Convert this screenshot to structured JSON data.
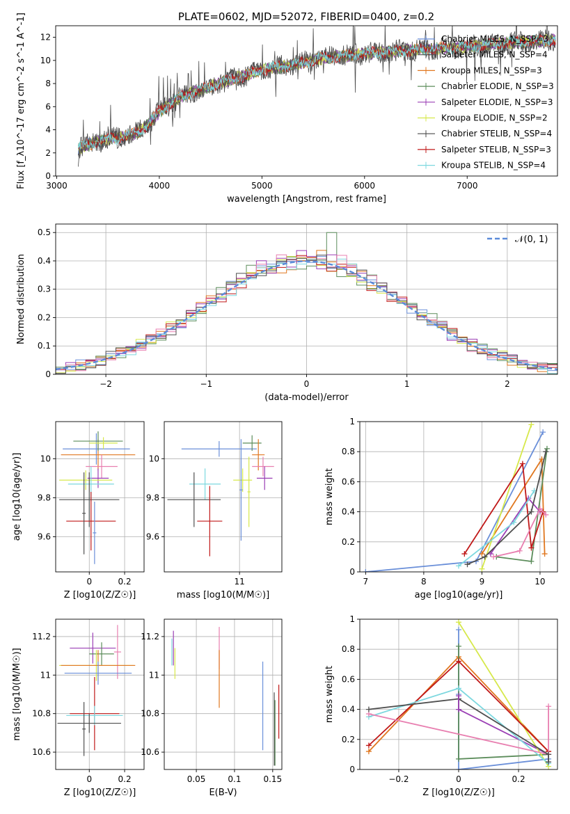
{
  "figure": {
    "title": "PLATE=0602, MJD=52072, FIBERID=0400, z=0.2"
  },
  "chart_data": [
    {
      "type": "line",
      "panel": "spectrum",
      "xlabel": "wavelength [Angstrom, rest frame]",
      "ylabel": "Flux [f_λ10^-17 erg cm^-2 s^-1 A^-1]",
      "xlim": [
        2990,
        7880
      ],
      "ylim": [
        0,
        13
      ],
      "xticks": [
        3000,
        4000,
        5000,
        6000,
        7000
      ],
      "yticks": [
        0,
        2,
        4,
        6,
        8,
        10,
        12
      ],
      "grid": false,
      "legend_position": "top-right",
      "data_start_x": 3210,
      "data_end_x": 7860,
      "continuum": {
        "x": [
          3210,
          3400,
          3600,
          3800,
          3900,
          4000,
          4200,
          4500,
          4800,
          5000,
          5300,
          5600,
          6000,
          6500,
          7000,
          7500,
          7860
        ],
        "y": [
          2.4,
          3.0,
          3.3,
          3.8,
          4.5,
          5.6,
          6.8,
          7.8,
          8.6,
          9.2,
          9.6,
          10.2,
          10.6,
          10.9,
          11.2,
          11.6,
          11.8
        ]
      },
      "series": [
        {
          "name": "Chabrier MILES, N_SSP=3",
          "color": "#6a8fd9"
        },
        {
          "name": "Salpeter MILES, N_SSP=4",
          "color": "#4f4f4f"
        },
        {
          "name": "Kroupa MILES, N_SSP=3",
          "color": "#e0771f"
        },
        {
          "name": "Chabrier ELODIE, N_SSP=3",
          "color": "#5b8c5a"
        },
        {
          "name": "Salpeter ELODIE, N_SSP=3",
          "color": "#9b3fb5"
        },
        {
          "name": "Kroupa ELODIE, N_SSP=2",
          "color": "#d6e84a"
        },
        {
          "name": "Chabrier STELIB, N_SSP=4",
          "color": "#4a4a4a"
        },
        {
          "name": "Salpeter STELIB, N_SSP=3",
          "color": "#c01818"
        },
        {
          "name": "Kroupa STELIB, N_SSP=4",
          "color": "#7dd8df"
        }
      ]
    },
    {
      "type": "histogram",
      "panel": "residuals",
      "xlabel": "(data-model)/error",
      "ylabel": "Normed distribution",
      "xlim": [
        -2.5,
        2.5
      ],
      "ylim": [
        0,
        0.53
      ],
      "xticks": [
        -2,
        -1,
        0,
        1,
        2
      ],
      "yticks": [
        0.0,
        0.1,
        0.2,
        0.3,
        0.4,
        0.5
      ],
      "grid": true,
      "legend_position": "top-right",
      "reference_curve": {
        "name": "𝒩(0, 1)",
        "mu": 0,
        "sigma": 1,
        "color": "#5b8bd9"
      },
      "bin_width": 0.1,
      "bin_start": -2.5,
      "histogram_colors": [
        "#6a8fd9",
        "#e0771f",
        "#5b8c5a",
        "#9b3fb5",
        "#d6e84a",
        "#c01818",
        "#7dd8df",
        "#e87fb0",
        "#4f4f4f"
      ]
    },
    {
      "type": "scatter",
      "panel": "Z-age",
      "xlabel": "Z [log10(Z/Z☉)]",
      "ylabel": "age  [log10(age/yr)]",
      "xlim": [
        -0.19,
        0.31
      ],
      "ylim": [
        9.42,
        10.19
      ],
      "xticks": [
        0.0,
        0.2
      ],
      "yticks": [
        9.6,
        9.8,
        10.0
      ],
      "grid": true,
      "points": [
        {
          "x": 0.04,
          "y": 10.05,
          "xerr": 0.19,
          "yerr": 0.08,
          "color": "#6a8fd9"
        },
        {
          "x": 0.05,
          "y": 10.02,
          "xerr": 0.21,
          "yerr": 0.08,
          "color": "#e0771f"
        },
        {
          "x": 0.05,
          "y": 10.09,
          "xerr": 0.14,
          "yerr": 0.05,
          "color": "#5b8c5a"
        },
        {
          "x": 0.08,
          "y": 10.08,
          "xerr": 0.08,
          "yerr": 0.03,
          "color": "#d6e84a"
        },
        {
          "x": 0.07,
          "y": 9.96,
          "xerr": 0.09,
          "yerr": 0.06,
          "color": "#e87fb0"
        },
        {
          "x": 0.05,
          "y": 9.9,
          "xerr": 0.06,
          "yerr": 0.05,
          "color": "#9b3fb5"
        },
        {
          "x": -0.02,
          "y": 9.89,
          "xerr": 0.15,
          "yerr": 0.05,
          "color": "#d6e84a"
        },
        {
          "x": 0.01,
          "y": 9.87,
          "xerr": 0.13,
          "yerr": 0.09,
          "color": "#7dd8df"
        },
        {
          "x": 0.0,
          "y": 9.79,
          "xerr": 0.17,
          "yerr": 0.14,
          "color": "#4f4f4f"
        },
        {
          "x": 0.01,
          "y": 9.68,
          "xerr": 0.14,
          "yerr": 0.15,
          "color": "#c01818"
        },
        {
          "x": -0.03,
          "y": 9.72,
          "xerr": 0.01,
          "yerr": 0.21,
          "color": "#4f4f4f"
        },
        {
          "x": 0.03,
          "y": 9.62,
          "xerr": 0.01,
          "yerr": 0.16,
          "color": "#6a8fd9"
        }
      ]
    },
    {
      "type": "scatter",
      "panel": "mass-age",
      "xlabel": "mass [log10(M/M☉)]",
      "ylabel": "",
      "xlim": [
        10.52,
        11.27
      ],
      "ylim": [
        9.42,
        10.19
      ],
      "xticks": [
        10.5,
        11.0
      ],
      "yticks": [
        9.6,
        9.8,
        10.0
      ],
      "grid": true,
      "points": [
        {
          "x": 10.87,
          "y": 10.05,
          "xerr": 0.24,
          "yerr": 0.04,
          "color": "#6a8fd9"
        },
        {
          "x": 11.08,
          "y": 10.08,
          "xerr": 0.06,
          "yerr": 0.04,
          "color": "#5b8c5a"
        },
        {
          "x": 11.12,
          "y": 10.02,
          "xerr": 0.04,
          "yerr": 0.08,
          "color": "#e0771f"
        },
        {
          "x": 11.15,
          "y": 9.96,
          "xerr": 0.07,
          "yerr": 0.05,
          "color": "#e87fb0"
        },
        {
          "x": 11.16,
          "y": 9.9,
          "xerr": 0.05,
          "yerr": 0.06,
          "color": "#9b3fb5"
        },
        {
          "x": 11.02,
          "y": 9.89,
          "xerr": 0.06,
          "yerr": 0.06,
          "color": "#d6e84a"
        },
        {
          "x": 10.78,
          "y": 9.87,
          "xerr": 0.1,
          "yerr": 0.08,
          "color": "#7dd8df"
        },
        {
          "x": 10.71,
          "y": 9.79,
          "xerr": 0.17,
          "yerr": 0.14,
          "color": "#4f4f4f"
        },
        {
          "x": 10.81,
          "y": 9.68,
          "xerr": 0.08,
          "yerr": 0.18,
          "color": "#c01818"
        },
        {
          "x": 11.06,
          "y": 9.83,
          "xerr": 0.01,
          "yerr": 0.18,
          "color": "#d6e84a"
        },
        {
          "x": 11.01,
          "y": 9.84,
          "xerr": 0.01,
          "yerr": 0.26,
          "color": "#6a8fd9"
        }
      ]
    },
    {
      "type": "line",
      "panel": "age-weight",
      "xlabel": "age  [log10(age/yr)]",
      "ylabel": "mass weight",
      "xlim": [
        6.9,
        10.3
      ],
      "ylim": [
        0,
        1
      ],
      "xticks": [
        7,
        8,
        9,
        10
      ],
      "yticks": [
        0.0,
        0.2,
        0.4,
        0.6,
        0.8,
        1.0
      ],
      "grid": true,
      "series": [
        {
          "color": "#6a8fd9",
          "x": [
            7.0,
            8.9,
            10.05
          ],
          "y": [
            0.0,
            0.07,
            0.93
          ]
        },
        {
          "color": "#e0771f",
          "x": [
            9.0,
            10.03,
            10.08
          ],
          "y": [
            0.12,
            0.75,
            0.12
          ]
        },
        {
          "color": "#5b8c5a",
          "x": [
            9.25,
            9.85,
            10.12
          ],
          "y": [
            0.1,
            0.07,
            0.82
          ]
        },
        {
          "color": "#9b3fb5",
          "x": [
            9.15,
            9.8,
            10.0
          ],
          "y": [
            0.12,
            0.49,
            0.4
          ]
        },
        {
          "color": "#d6e84a",
          "x": [
            9.0,
            9.85
          ],
          "y": [
            0.02,
            0.98
          ]
        },
        {
          "color": "#c01818",
          "x": [
            8.7,
            9.7,
            9.85,
            10.05
          ],
          "y": [
            0.12,
            0.72,
            0.16,
            0.4
          ]
        },
        {
          "color": "#7dd8df",
          "x": [
            8.6,
            9.55,
            9.9
          ],
          "y": [
            0.04,
            0.33,
            0.54
          ]
        },
        {
          "color": "#e87fb0",
          "x": [
            9.2,
            9.65,
            10.0,
            10.1
          ],
          "y": [
            0.1,
            0.14,
            0.42,
            0.38
          ]
        },
        {
          "color": "#4f4f4f",
          "x": [
            8.75,
            9.05,
            9.85,
            10.1
          ],
          "y": [
            0.05,
            0.1,
            0.4,
            0.8
          ]
        }
      ]
    },
    {
      "type": "scatter",
      "panel": "Z-mass",
      "xlabel": "Z [log10(Z/Z☉)]",
      "ylabel": "mass [log10(M/M☉)]",
      "xlim": [
        -0.19,
        0.31
      ],
      "ylim": [
        10.51,
        11.29
      ],
      "xticks": [
        0.0,
        0.2
      ],
      "yticks": [
        10.6,
        10.8,
        11.0,
        11.2
      ],
      "grid": true,
      "points": [
        {
          "x": 0.02,
          "y": 11.14,
          "xerr": 0.13,
          "yerr": 0.08,
          "color": "#9b3fb5"
        },
        {
          "x": 0.07,
          "y": 11.11,
          "xerr": 0.07,
          "yerr": 0.06,
          "color": "#5b8c5a"
        },
        {
          "x": 0.16,
          "y": 11.12,
          "xerr": 0.02,
          "yerr": 0.14,
          "color": "#e87fb0"
        },
        {
          "x": 0.04,
          "y": 11.05,
          "xerr": 0.21,
          "yerr": 0.08,
          "color": "#d6e84a"
        },
        {
          "x": 0.05,
          "y": 11.05,
          "xerr": 0.21,
          "yerr": 0.08,
          "color": "#e0771f"
        },
        {
          "x": 0.05,
          "y": 11.01,
          "xerr": 0.19,
          "yerr": 0.06,
          "color": "#6a8fd9"
        },
        {
          "x": 0.03,
          "y": 10.8,
          "xerr": 0.14,
          "yerr": 0.19,
          "color": "#c01818"
        },
        {
          "x": 0.03,
          "y": 10.79,
          "xerr": 0.16,
          "yerr": 0.05,
          "color": "#7dd8df"
        },
        {
          "x": 0.0,
          "y": 10.75,
          "xerr": 0.18,
          "yerr": 0.05,
          "color": "#4f4f4f"
        },
        {
          "x": -0.03,
          "y": 10.72,
          "xerr": 0.01,
          "yerr": 0.14,
          "color": "#4f4f4f"
        }
      ]
    },
    {
      "type": "scatter",
      "panel": "EBV-mass",
      "xlabel": "E(B-V)",
      "ylabel": "",
      "xlim": [
        0.008,
        0.162
      ],
      "ylim": [
        10.51,
        11.29
      ],
      "xticks": [
        0.05,
        0.1,
        0.15
      ],
      "yticks": [
        10.6,
        10.8,
        11.0,
        11.2
      ],
      "grid": true,
      "points": [
        {
          "x": 0.02,
          "y": 11.14,
          "yerr": 0.09,
          "color": "#9b3fb5"
        },
        {
          "x": 0.022,
          "y": 11.06,
          "yerr": 0.08,
          "color": "#d6e84a"
        },
        {
          "x": 0.018,
          "y": 11.12,
          "yerr": 0.07,
          "color": "#7dd8df"
        },
        {
          "x": 0.08,
          "y": 11.14,
          "yerr": 0.11,
          "color": "#e87fb0"
        },
        {
          "x": 0.08,
          "y": 10.98,
          "yerr": 0.15,
          "color": "#e0771f"
        },
        {
          "x": 0.137,
          "y": 10.84,
          "yerr": 0.23,
          "color": "#6a8fd9"
        },
        {
          "x": 0.152,
          "y": 10.72,
          "yerr": 0.19,
          "color": "#4f4f4f"
        },
        {
          "x": 0.153,
          "y": 10.7,
          "yerr": 0.17,
          "color": "#5b8c5a"
        },
        {
          "x": 0.158,
          "y": 10.81,
          "yerr": 0.14,
          "color": "#c01818"
        }
      ]
    },
    {
      "type": "line",
      "panel": "Z-weight",
      "xlabel": "Z [log10(Z/Z☉)]",
      "ylabel": "mass weight",
      "xlim": [
        -0.33,
        0.33
      ],
      "ylim": [
        0,
        1
      ],
      "xticks": [
        -0.2,
        0.0,
        0.2
      ],
      "yticks": [
        0.0,
        0.2,
        0.4,
        0.6,
        0.8,
        1.0
      ],
      "grid": true,
      "series": [
        {
          "color": "#6a8fd9",
          "x": [
            0.0,
            0.0,
            0.0,
            0.3
          ],
          "y": [
            0.93,
            0.5,
            0.0,
            0.07
          ]
        },
        {
          "color": "#e0771f",
          "x": [
            -0.3,
            0.0,
            0.3
          ],
          "y": [
            0.12,
            0.75,
            0.12
          ]
        },
        {
          "color": "#5b8c5a",
          "x": [
            0.0,
            0.0,
            0.3
          ],
          "y": [
            0.82,
            0.07,
            0.1
          ]
        },
        {
          "color": "#9b3fb5",
          "x": [
            0.0,
            0.3
          ],
          "y": [
            0.4,
            0.1
          ]
        },
        {
          "color": "#d6e84a",
          "x": [
            0.0,
            0.3
          ],
          "y": [
            0.98,
            0.02
          ]
        },
        {
          "color": "#c01818",
          "x": [
            -0.3,
            0.0,
            0.3
          ],
          "y": [
            0.16,
            0.72,
            0.12
          ]
        },
        {
          "color": "#7dd8df",
          "x": [
            -0.3,
            0.0,
            0.3
          ],
          "y": [
            0.35,
            0.54,
            0.04
          ]
        },
        {
          "color": "#e87fb0",
          "x": [
            -0.3,
            0.3,
            0.3
          ],
          "y": [
            0.37,
            0.1,
            0.42
          ]
        },
        {
          "color": "#4f4f4f",
          "x": [
            -0.3,
            0.0,
            0.3,
            0.3
          ],
          "y": [
            0.4,
            0.47,
            0.1,
            0.05
          ]
        },
        {
          "color": "#9b3fb5",
          "x": [
            0.0,
            0.0
          ],
          "y": [
            0.4,
            0.49
          ]
        }
      ]
    }
  ]
}
